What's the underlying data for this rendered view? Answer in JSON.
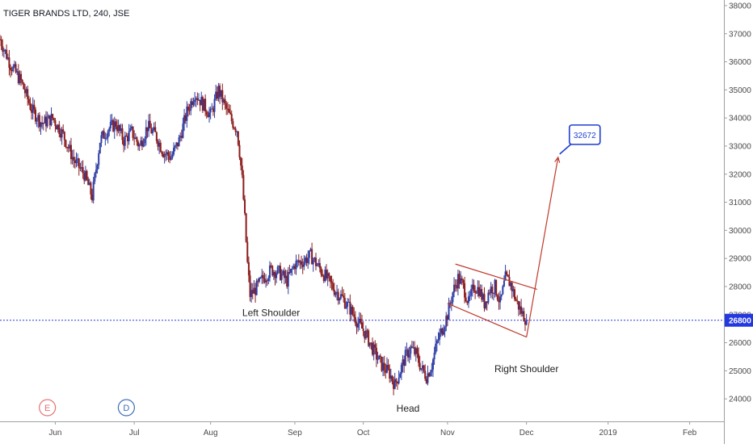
{
  "chart_data": {
    "type": "candlestick",
    "title": "TIGER BRANDS LTD, 240, JSE",
    "ylim": [
      23200,
      38200
    ],
    "y_ticks": [
      24000,
      25000,
      26000,
      27000,
      28000,
      29000,
      30000,
      31000,
      32000,
      33000,
      34000,
      35000,
      36000,
      37000,
      38000
    ],
    "y_tick_labels": [
      "24000",
      "25000",
      "26000",
      "27000",
      "28000",
      "29000",
      "30000",
      "31000",
      "32000",
      "33000",
      "34000",
      "35000",
      "36000",
      "37000",
      "38000"
    ],
    "x_labels": [
      {
        "label": "Jun",
        "t": 5
      },
      {
        "label": "Jul",
        "t": 35
      },
      {
        "label": "Aug",
        "t": 64
      },
      {
        "label": "Sep",
        "t": 96
      },
      {
        "label": "Oct",
        "t": 122
      },
      {
        "label": "Nov",
        "t": 154
      },
      {
        "label": "Dec",
        "t": 184
      },
      {
        "label": "2019",
        "t": 215
      },
      {
        "label": "Feb",
        "t": 246
      }
    ],
    "t_range": [
      -16,
      259
    ],
    "price_path": [
      [
        -16,
        36800
      ],
      [
        -12,
        35900
      ],
      [
        -8,
        35300
      ],
      [
        -4,
        34300
      ],
      [
        0,
        33800
      ],
      [
        4,
        34000
      ],
      [
        8,
        33400
      ],
      [
        12,
        32500
      ],
      [
        16,
        32000
      ],
      [
        19,
        31200
      ],
      [
        22,
        33200
      ],
      [
        25,
        33600
      ],
      [
        28,
        33800
      ],
      [
        31,
        33200
      ],
      [
        34,
        33500
      ],
      [
        37,
        33000
      ],
      [
        40,
        33700
      ],
      [
        43,
        33400
      ],
      [
        46,
        32800
      ],
      [
        49,
        32600
      ],
      [
        52,
        33200
      ],
      [
        55,
        34200
      ],
      [
        58,
        34900
      ],
      [
        61,
        34500
      ],
      [
        64,
        34100
      ],
      [
        67,
        35000
      ],
      [
        70,
        34300
      ],
      [
        72,
        33900
      ],
      [
        74,
        33600
      ],
      [
        75,
        32800
      ],
      [
        76,
        31800
      ],
      [
        77,
        30400
      ],
      [
        78,
        28800
      ],
      [
        79,
        27700
      ],
      [
        81,
        27900
      ],
      [
        84,
        28300
      ],
      [
        87,
        28600
      ],
      [
        90,
        28500
      ],
      [
        93,
        28200
      ],
      [
        96,
        28800
      ],
      [
        99,
        28900
      ],
      [
        102,
        29100
      ],
      [
        105,
        28700
      ],
      [
        108,
        28300
      ],
      [
        111,
        27900
      ],
      [
        114,
        27600
      ],
      [
        117,
        27200
      ],
      [
        120,
        26700
      ],
      [
        123,
        26300
      ],
      [
        126,
        25700
      ],
      [
        129,
        25200
      ],
      [
        132,
        24900
      ],
      [
        134,
        24500
      ],
      [
        136,
        25000
      ],
      [
        138,
        25500
      ],
      [
        140,
        25800
      ],
      [
        142,
        25600
      ],
      [
        144,
        25100
      ],
      [
        146,
        24800
      ],
      [
        148,
        25200
      ],
      [
        150,
        26000
      ],
      [
        152,
        26500
      ],
      [
        154,
        27000
      ],
      [
        156,
        27800
      ],
      [
        158,
        28300
      ],
      [
        160,
        28000
      ],
      [
        162,
        27400
      ],
      [
        164,
        28000
      ],
      [
        166,
        27900
      ],
      [
        168,
        27400
      ],
      [
        170,
        27900
      ],
      [
        172,
        28000
      ],
      [
        174,
        27400
      ],
      [
        176,
        28300
      ],
      [
        178,
        28100
      ],
      [
        180,
        27500
      ],
      [
        182,
        27100
      ],
      [
        184,
        26800
      ]
    ],
    "current_price": 26800,
    "current_price_label": "26800",
    "target_label": "32672",
    "target_price": 32672,
    "channel_upper": [
      [
        157,
        28800
      ],
      [
        188,
        27900
      ]
    ],
    "channel_lower": [
      [
        154,
        27400
      ],
      [
        184,
        26200
      ]
    ],
    "projection": [
      [
        184,
        26200
      ],
      [
        196,
        32600
      ]
    ],
    "annotations": [
      {
        "text": "Left Shoulder",
        "t": 87,
        "price": 26950
      },
      {
        "text": "Head",
        "t": 139,
        "price": 23550
      },
      {
        "text": "Right Shoulder",
        "t": 184,
        "price": 24950
      }
    ],
    "events": [
      {
        "text": "E",
        "t": 2,
        "color": "#e57373"
      },
      {
        "text": "D",
        "t": 32,
        "color": "#3f6fb5"
      }
    ],
    "colors": {
      "up": "#2f3fa6",
      "down": "#8c1c1c",
      "channel": "#c0392b",
      "price_line": "#2c39d6",
      "axis": "#9aa0a6"
    }
  }
}
